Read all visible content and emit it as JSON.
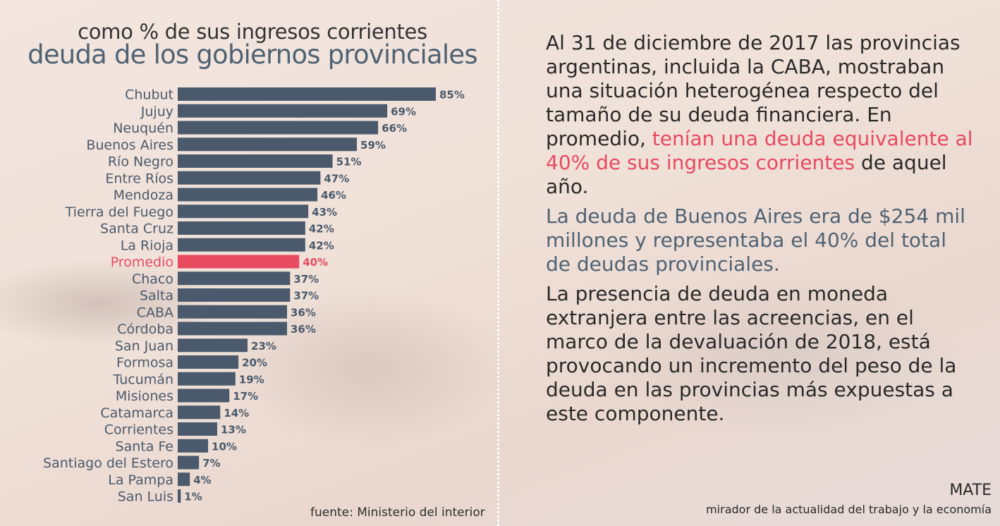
{
  "chart_data": {
    "type": "bar",
    "orientation": "horizontal",
    "subtitle": "como % de sus ingresos corrientes",
    "title": "deuda de los gobiernos provinciales",
    "categories": [
      "Chubut",
      "Jujuy",
      "Neuquén",
      "Buenos Aires",
      "Río Negro",
      "Entre Ríos",
      "Mendoza",
      "Tierra del Fuego",
      "Santa Cruz",
      "La Rioja",
      "Promedio",
      "Chaco",
      "Salta",
      "CABA",
      "Córdoba",
      "San Juan",
      "Formosa",
      "Tucumán",
      "Misiones",
      "Catamarca",
      "Corrientes",
      "Santa Fe",
      "Santiago del Estero",
      "La Pampa",
      "San Luis"
    ],
    "values": [
      85,
      69,
      66,
      59,
      51,
      47,
      46,
      43,
      42,
      42,
      40,
      37,
      37,
      36,
      36,
      23,
      20,
      19,
      17,
      14,
      13,
      10,
      7,
      4,
      1
    ],
    "labels": [
      "85%",
      "69%",
      "66%",
      "59%",
      "51%",
      "47%",
      "46%",
      "43%",
      "42%",
      "42%",
      "40%",
      "37%",
      "37%",
      "36%",
      "36%",
      "23%",
      "20%",
      "19%",
      "17%",
      "14%",
      "13%",
      "10%",
      "7%",
      "4%",
      "1%"
    ],
    "highlight_category": "Promedio",
    "colors": {
      "bar": "#4a5a6c",
      "highlight": "#e84a5f",
      "label": "#4a5a6c"
    },
    "grid": false,
    "xlim": [
      0,
      85
    ],
    "source": "fuente: Ministerio del interior"
  },
  "text": {
    "p1_a": "Al 31 de diciembre de 2017 las provincias argentinas, incluida la CABA, mostraban una situación heterogénea respecto del tamaño de su deuda financiera. En promedio, ",
    "p1_highlight": "tenían una deuda equivalente al 40% de sus ingresos corrientes",
    "p1_b": " de aquel año.",
    "p2": "La deuda de Buenos Aires era de $254 mil millones y representaba el 40% del total de deudas provinciales.",
    "p3": "La presencia de deuda en moneda extranjera entre las acreencias, en el marco de la devaluación de 2018, está provocando un incremento del peso de la deuda en las provincias más expuestas a este componente."
  },
  "brand": {
    "name": "MATE",
    "tagline": "mirador de la actualidad del trabajo y la economía"
  }
}
